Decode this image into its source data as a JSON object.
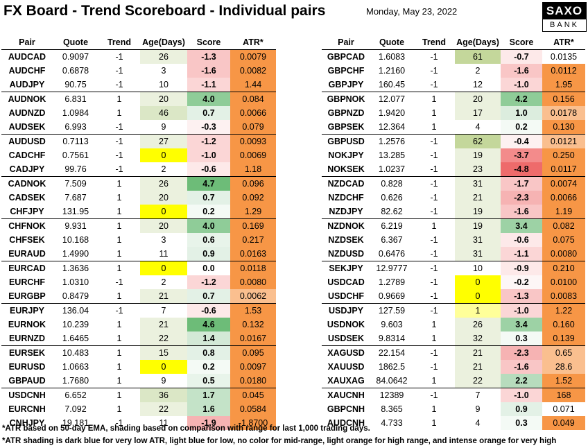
{
  "title": "FX Board - Trend Scoreboard - Individual pairs",
  "date": "Monday, May 23, 2022",
  "logo": {
    "top": "SAXO",
    "bottom": "BANK"
  },
  "columns": [
    "Pair",
    "Quote",
    "Trend",
    "Age(Days)",
    "Score",
    "ATR*"
  ],
  "colors": {
    "age_green": "#ebf1de",
    "age_green_strong": "#c4d79b",
    "age_yellow": "#ffff00",
    "atr_orange": "#f79646",
    "atr_light_orange": "#fabf8f",
    "score_red_1": "#fde9e9",
    "score_red_2": "#f9c6c6",
    "score_red_3": "#f38b8b",
    "score_red_4": "#ee6b6b",
    "score_green_1": "#eaf4ec",
    "score_green_2": "#d3e9d6",
    "score_green_3": "#c4e3c8",
    "score_green_4": "#8fcc98",
    "score_green_5": "#6dbc78"
  },
  "left_table": [
    {
      "pair": "AUDCAD",
      "quote": "0.9097",
      "trend": "-1",
      "age": "26",
      "score": "-1.3",
      "atr": "0.0079",
      "age_color": "#ebf1de",
      "score_color": "#f9c6c6",
      "atr_color": "#f79646"
    },
    {
      "pair": "AUDCHF",
      "quote": "0.6878",
      "trend": "-1",
      "age": "3",
      "score": "-1.6",
      "atr": "0.0082",
      "age_color": "",
      "score_color": "#f9c6c6",
      "atr_color": "#f79646"
    },
    {
      "pair": "AUDJPY",
      "quote": "90.75",
      "trend": "-1",
      "age": "10",
      "score": "-1.1",
      "atr": "1.44",
      "age_color": "",
      "score_color": "#fbd6d6",
      "atr_color": "#f79646"
    },
    {
      "pair": "AUDNOK",
      "quote": "6.831",
      "trend": "1",
      "age": "20",
      "score": "4.0",
      "atr": "0.084",
      "age_color": "#ebf1de",
      "score_color": "#8fcc98",
      "atr_color": "#f79646",
      "gs": true
    },
    {
      "pair": "AUDNZD",
      "quote": "1.0984",
      "trend": "1",
      "age": "46",
      "score": "0.7",
      "atr": "0.0066",
      "age_color": "#dbe7c6",
      "score_color": "#e3f1e6",
      "atr_color": "#f79646"
    },
    {
      "pair": "AUDSEK",
      "quote": "6.993",
      "trend": "-1",
      "age": "9",
      "score": "-0.3",
      "atr": "0.079",
      "age_color": "",
      "score_color": "#fdf1f1",
      "atr_color": "#f79646"
    },
    {
      "pair": "AUDUSD",
      "quote": "0.7113",
      "trend": "-1",
      "age": "27",
      "score": "-1.2",
      "atr": "0.0093",
      "age_color": "#ebf1de",
      "score_color": "#fbd6d6",
      "atr_color": "#f79646",
      "gs": true
    },
    {
      "pair": "CADCHF",
      "quote": "0.7561",
      "trend": "-1",
      "age": "0",
      "score": "-1.0",
      "atr": "0.0069",
      "age_color": "#ffff00",
      "score_color": "#fbd6d6",
      "atr_color": "#f79646"
    },
    {
      "pair": "CADJPY",
      "quote": "99.76",
      "trend": "-1",
      "age": "2",
      "score": "-0.6",
      "atr": "1.18",
      "age_color": "",
      "score_color": "#fde9e9",
      "atr_color": "#f79646"
    },
    {
      "pair": "CADNOK",
      "quote": "7.509",
      "trend": "1",
      "age": "26",
      "score": "4.7",
      "atr": "0.096",
      "age_color": "#ebf1de",
      "score_color": "#6dbc78",
      "atr_color": "#f79646",
      "gs": true
    },
    {
      "pair": "CADSEK",
      "quote": "7.687",
      "trend": "1",
      "age": "20",
      "score": "0.7",
      "atr": "0.092",
      "age_color": "#ebf1de",
      "score_color": "#e3f1e6",
      "atr_color": "#f79646"
    },
    {
      "pair": "CHFJPY",
      "quote": "131.95",
      "trend": "1",
      "age": "0",
      "score": "0.2",
      "atr": "1.29",
      "age_color": "#ffff00",
      "score_color": "#f4faf5",
      "atr_color": "#f79646"
    },
    {
      "pair": "CHFNOK",
      "quote": "9.931",
      "trend": "1",
      "age": "20",
      "score": "4.0",
      "atr": "0.169",
      "age_color": "#ebf1de",
      "score_color": "#8fcc98",
      "atr_color": "#f79646",
      "gs": true
    },
    {
      "pair": "CHFSEK",
      "quote": "10.168",
      "trend": "1",
      "age": "3",
      "score": "0.6",
      "atr": "0.217",
      "age_color": "",
      "score_color": "#e8f4ea",
      "atr_color": "#f79646"
    },
    {
      "pair": "EURAUD",
      "quote": "1.4990",
      "trend": "1",
      "age": "11",
      "score": "0.9",
      "atr": "0.0163",
      "age_color": "",
      "score_color": "#e3f1e6",
      "atr_color": "#f79646"
    },
    {
      "pair": "EURCAD",
      "quote": "1.3636",
      "trend": "1",
      "age": "0",
      "score": "0.0",
      "atr": "0.0118",
      "age_color": "#ffff00",
      "score_color": "",
      "atr_color": "#f79646",
      "gs": true
    },
    {
      "pair": "EURCHF",
      "quote": "1.0310",
      "trend": "-1",
      "age": "2",
      "score": "-1.2",
      "atr": "0.0080",
      "age_color": "",
      "score_color": "#fbd6d6",
      "atr_color": "#f79646"
    },
    {
      "pair": "EURGBP",
      "quote": "0.8479",
      "trend": "1",
      "age": "21",
      "score": "0.7",
      "atr": "0.0062",
      "age_color": "#ebf1de",
      "score_color": "#e3f1e6",
      "atr_color": "#fabf8f"
    },
    {
      "pair": "EURJPY",
      "quote": "136.04",
      "trend": "-1",
      "age": "7",
      "score": "-0.6",
      "atr": "1.53",
      "age_color": "",
      "score_color": "#fde9e9",
      "atr_color": "#f79646",
      "gs": true
    },
    {
      "pair": "EURNOK",
      "quote": "10.239",
      "trend": "1",
      "age": "21",
      "score": "4.6",
      "atr": "0.132",
      "age_color": "#ebf1de",
      "score_color": "#6dbc78",
      "atr_color": "#f79646"
    },
    {
      "pair": "EURNZD",
      "quote": "1.6465",
      "trend": "1",
      "age": "22",
      "score": "1.4",
      "atr": "0.0167",
      "age_color": "#ebf1de",
      "score_color": "#d3e9d6",
      "atr_color": "#f79646"
    },
    {
      "pair": "EURSEK",
      "quote": "10.483",
      "trend": "1",
      "age": "15",
      "score": "0.8",
      "atr": "0.095",
      "age_color": "#ebf1de",
      "score_color": "#e3f1e6",
      "atr_color": "#f79646",
      "gs": true
    },
    {
      "pair": "EURUSD",
      "quote": "1.0663",
      "trend": "1",
      "age": "0",
      "score": "0.2",
      "atr": "0.0097",
      "age_color": "#ffff00",
      "score_color": "#f4faf5",
      "atr_color": "#f79646"
    },
    {
      "pair": "GBPAUD",
      "quote": "1.7680",
      "trend": "1",
      "age": "9",
      "score": "0.5",
      "atr": "0.0180",
      "age_color": "",
      "score_color": "#e8f4ea",
      "atr_color": "#f79646"
    },
    {
      "pair": "USDCNH",
      "quote": "6.652",
      "trend": "1",
      "age": "36",
      "score": "1.7",
      "atr": "0.045",
      "age_color": "#dbe7c6",
      "score_color": "#c4e3c8",
      "atr_color": "#f79646",
      "gs": true
    },
    {
      "pair": "EURCNH",
      "quote": "7.092",
      "trend": "1",
      "age": "22",
      "score": "1.6",
      "atr": "0.0584",
      "age_color": "#ebf1de",
      "score_color": "#c4e3c8",
      "atr_color": "#f79646"
    },
    {
      "pair": "CNHJPY",
      "quote": "19.181",
      "trend": "-1",
      "age": "11",
      "score": "-1.9",
      "atr": "-1.8700",
      "age_color": "",
      "score_color": "#f6b3b3",
      "atr_color": "#f79646"
    }
  ],
  "right_table": [
    {
      "pair": "GBPCAD",
      "quote": "1.6083",
      "trend": "-1",
      "age": "61",
      "score": "-0.7",
      "atr": "0.0135",
      "age_color": "#c4d79b",
      "score_color": "#fde9e9",
      "atr_color": ""
    },
    {
      "pair": "GBPCHF",
      "quote": "1.2160",
      "trend": "-1",
      "age": "2",
      "score": "-1.6",
      "atr": "0.0112",
      "age_color": "",
      "score_color": "#f9c6c6",
      "atr_color": "#f79646"
    },
    {
      "pair": "GBPJPY",
      "quote": "160.45",
      "trend": "-1",
      "age": "12",
      "score": "-1.0",
      "atr": "1.95",
      "age_color": "",
      "score_color": "#fbd6d6",
      "atr_color": "#f79646"
    },
    {
      "pair": "GBPNOK",
      "quote": "12.077",
      "trend": "1",
      "age": "20",
      "score": "4.2",
      "atr": "0.156",
      "age_color": "#ebf1de",
      "score_color": "#8fcc98",
      "atr_color": "#f79646",
      "gs": true
    },
    {
      "pair": "GBPNZD",
      "quote": "1.9420",
      "trend": "1",
      "age": "17",
      "score": "1.0",
      "atr": "0.0178",
      "age_color": "#ebf1de",
      "score_color": "#dcedde",
      "atr_color": "#fabf8f"
    },
    {
      "pair": "GBPSEK",
      "quote": "12.364",
      "trend": "1",
      "age": "4",
      "score": "0.2",
      "atr": "0.130",
      "age_color": "",
      "score_color": "#f4faf5",
      "atr_color": "#f79646"
    },
    {
      "pair": "GBPUSD",
      "quote": "1.2576",
      "trend": "-1",
      "age": "62",
      "score": "-0.4",
      "atr": "0.0121",
      "age_color": "#c4d79b",
      "score_color": "#fdf1f1",
      "atr_color": "#fabf8f",
      "gs": true
    },
    {
      "pair": "NOKJPY",
      "quote": "13.285",
      "trend": "-1",
      "age": "19",
      "score": "-3.7",
      "atr": "0.250",
      "age_color": "#ebf1de",
      "score_color": "#f38b8b",
      "atr_color": "#f79646"
    },
    {
      "pair": "NOKSEK",
      "quote": "1.0237",
      "trend": "-1",
      "age": "23",
      "score": "-4.8",
      "atr": "0.0117",
      "age_color": "#ebf1de",
      "score_color": "#ee6b6b",
      "atr_color": "#f79646"
    },
    {
      "pair": "NZDCAD",
      "quote": "0.828",
      "trend": "-1",
      "age": "31",
      "score": "-1.7",
      "atr": "0.0074",
      "age_color": "#ebf1de",
      "score_color": "#f9c6c6",
      "atr_color": "#f79646",
      "gs": true
    },
    {
      "pair": "NZDCHF",
      "quote": "0.626",
      "trend": "-1",
      "age": "21",
      "score": "-2.3",
      "atr": "0.0066",
      "age_color": "#ebf1de",
      "score_color": "#f6b3b3",
      "atr_color": "#f79646"
    },
    {
      "pair": "NZDJPY",
      "quote": "82.62",
      "trend": "-1",
      "age": "19",
      "score": "-1.6",
      "atr": "1.19",
      "age_color": "#ebf1de",
      "score_color": "#f9c6c6",
      "atr_color": "#f79646"
    },
    {
      "pair": "NZDNOK",
      "quote": "6.219",
      "trend": "1",
      "age": "19",
      "score": "3.4",
      "atr": "0.082",
      "age_color": "#ebf1de",
      "score_color": "#9dd2a5",
      "atr_color": "#f79646",
      "gs": true
    },
    {
      "pair": "NZDSEK",
      "quote": "6.367",
      "trend": "-1",
      "age": "31",
      "score": "-0.6",
      "atr": "0.075",
      "age_color": "#ebf1de",
      "score_color": "#fde9e9",
      "atr_color": "#f79646"
    },
    {
      "pair": "NZDUSD",
      "quote": "0.6476",
      "trend": "-1",
      "age": "31",
      "score": "-1.1",
      "atr": "0.0080",
      "age_color": "#ebf1de",
      "score_color": "#fbd6d6",
      "atr_color": "#f79646"
    },
    {
      "pair": "SEKJPY",
      "quote": "12.9777",
      "trend": "-1",
      "age": "10",
      "score": "-0.9",
      "atr": "0.210",
      "age_color": "",
      "score_color": "#fde9e9",
      "atr_color": "#f79646",
      "gs": true
    },
    {
      "pair": "USDCAD",
      "quote": "1.2789",
      "trend": "-1",
      "age": "0",
      "score": "-0.2",
      "atr": "0.0100",
      "age_color": "#ffff00",
      "score_color": "#fdf6f6",
      "atr_color": "#f79646"
    },
    {
      "pair": "USDCHF",
      "quote": "0.9669",
      "trend": "-1",
      "age": "0",
      "score": "-1.3",
      "atr": "0.0083",
      "age_color": "#ffff00",
      "score_color": "#f9c6c6",
      "atr_color": "#f79646"
    },
    {
      "pair": "USDJPY",
      "quote": "127.59",
      "trend": "-1",
      "age": "1",
      "score": "-1.0",
      "atr": "1.22",
      "age_color": "#ffff99",
      "score_color": "#fbd6d6",
      "atr_color": "#f79646",
      "gs": true
    },
    {
      "pair": "USDNOK",
      "quote": "9.603",
      "trend": "1",
      "age": "26",
      "score": "3.4",
      "atr": "0.160",
      "age_color": "#ebf1de",
      "score_color": "#9dd2a5",
      "atr_color": "#f79646"
    },
    {
      "pair": "USDSEK",
      "quote": "9.8314",
      "trend": "1",
      "age": "32",
      "score": "0.3",
      "atr": "0.139",
      "age_color": "#ebf1de",
      "score_color": "#f4faf5",
      "atr_color": "#f79646"
    },
    {
      "pair": "XAGUSD",
      "quote": "22.154",
      "trend": "-1",
      "age": "21",
      "score": "-2.3",
      "atr": "0.65",
      "age_color": "#ebf1de",
      "score_color": "#f6b3b3",
      "atr_color": "#fabf8f",
      "gs": true
    },
    {
      "pair": "XAUUSD",
      "quote": "1862.5",
      "trend": "-1",
      "age": "21",
      "score": "-1.6",
      "atr": "28.6",
      "age_color": "#ebf1de",
      "score_color": "#f9c6c6",
      "atr_color": "#fabf8f"
    },
    {
      "pair": "XAUXAG",
      "quote": "84.0642",
      "trend": "1",
      "age": "22",
      "score": "2.2",
      "atr": "1.52",
      "age_color": "#ebf1de",
      "score_color": "#b7dcbd",
      "atr_color": "#f79646"
    },
    {
      "pair": "XAUCNH",
      "quote": "12389",
      "trend": "-1",
      "age": "7",
      "score": "-1.0",
      "atr": "168",
      "age_color": "",
      "score_color": "#fbd6d6",
      "atr_color": "#f79646",
      "gs": true
    },
    {
      "pair": "GBPCNH",
      "quote": "8.365",
      "trend": "1",
      "age": "9",
      "score": "0.9",
      "atr": "0.071",
      "age_color": "",
      "score_color": "#e3f1e6",
      "atr_color": ""
    },
    {
      "pair": "AUDCNH",
      "quote": "4.733",
      "trend": "1",
      "age": "4",
      "score": "0.3",
      "atr": "0.049",
      "age_color": "",
      "score_color": "#f4faf5",
      "atr_color": "#f79646"
    }
  ],
  "notes": [
    "*ATR based on 50-day EMA, shading based on comparison with range for last 1,000 trading days.",
    "*ATR shading is dark blue for very low ATR, light blue for low, no color for mid-range, light orange for high range, and intense orange for very high"
  ]
}
